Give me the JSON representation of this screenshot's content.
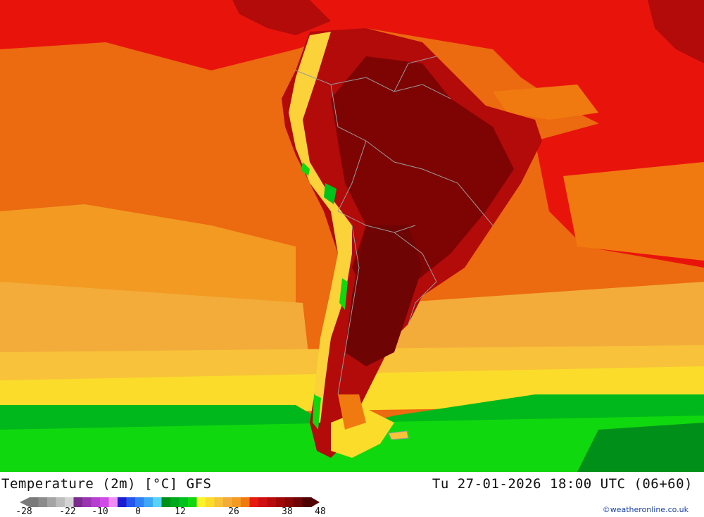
{
  "map": {
    "title": "Temperature (2m) [°C] GFS",
    "valid_time": "Tu 27-01-2026 18:00 UTC (06+60)",
    "credit": "©weatheronline.co.uk"
  },
  "legend": {
    "ticks": [
      "-28",
      "-22",
      "-10",
      "0",
      "12",
      "26",
      "38",
      "48"
    ],
    "colors": [
      "#7a7a7a",
      "#8c8c8c",
      "#a4a4a4",
      "#bdbdbd",
      "#d4d4d4",
      "#7a2d8c",
      "#9a35b0",
      "#b63fd2",
      "#d04ae8",
      "#f08cf5",
      "#1c1cd0",
      "#2456ee",
      "#2f82f4",
      "#3ea8f6",
      "#57d3f8",
      "#00901a",
      "#00a81c",
      "#00c21c",
      "#10d80e",
      "#fbf22b",
      "#fbdc2b",
      "#f8c23a",
      "#f3ac3a",
      "#f29a22",
      "#f17a10",
      "#e61a10",
      "#d01010",
      "#b80c0c",
      "#a00808",
      "#880606",
      "#6e0404",
      "#500000"
    ],
    "scale": "°C"
  },
  "map_style": {
    "ocean_warm": "#ec6a10",
    "ocean_hot": "#e8140c",
    "ocean_mid": "#f29a22",
    "ocean_cool": "#fbdc2b",
    "ocean_cold": "#00b81c",
    "land_hot": "#b30a0a",
    "land_very_hot": "#7e0404",
    "andes_cool": "#fbd23a",
    "border_color": "#9a9a9a"
  }
}
